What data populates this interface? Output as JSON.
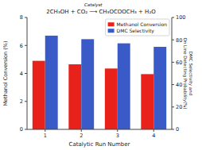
{
  "chart_data": {
    "type": "bar",
    "title": "2CH₃OH + CO₂ ⟶ CH₃OCOOCH₃ + H₂O",
    "annotations": [
      "Catalyst"
    ],
    "x_label": "Catalytic Run Number",
    "y_label": "Methanol Conversion (%)",
    "y2_label": "DMC Selectivity and\nOn Line Detecting Probability(%)",
    "categories": [
      1,
      2,
      3,
      4
    ],
    "series": [
      {
        "name": "Methanol Conversion",
        "color": "#e8221a",
        "values": [
          4.9,
          4.65,
          4.35,
          3.95
        ]
      },
      {
        "name": "DMC Selectivity",
        "color": "#3a5bc7",
        "axis": "y2",
        "values": [
          83.75,
          80.6,
          76.875,
          73.75
        ]
      }
    ],
    "ylim": [
      0,
      8
    ],
    "yticks": [
      0,
      2,
      4,
      6,
      8
    ],
    "y2lim": [
      0,
      100
    ],
    "y2ticks": [
      0,
      20,
      40,
      60,
      80,
      100
    ],
    "grid": false,
    "legend": "top-right"
  }
}
